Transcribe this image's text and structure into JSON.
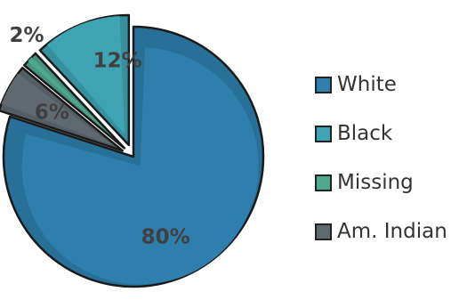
{
  "chart_data": {
    "type": "pie",
    "style": "exploded 3d-bevel",
    "start_angle_deg": 0,
    "direction": "clockwise",
    "slices": [
      {
        "label": "White",
        "value": 80,
        "value_label": "80%",
        "color": "#2F7FAE",
        "exploded": false
      },
      {
        "label": "Am. Indian",
        "value": 6,
        "value_label": "6%",
        "color": "#5E6A70",
        "exploded": true
      },
      {
        "label": "Missing",
        "value": 2,
        "value_label": "2%",
        "color": "#4FA88E",
        "exploded": true
      },
      {
        "label": "Black",
        "value": 12,
        "value_label": "12%",
        "color": "#3EA4B4",
        "exploded": true
      }
    ],
    "legend": {
      "position": "right",
      "entries": [
        "White",
        "Black",
        "Missing",
        "Am. Indian"
      ]
    },
    "title": "",
    "xlabel": "",
    "ylabel": ""
  }
}
